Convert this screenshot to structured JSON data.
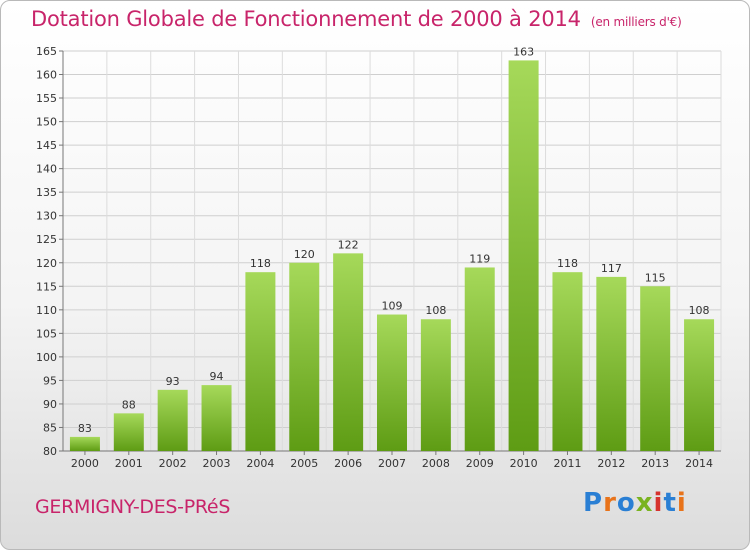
{
  "header": {
    "title": "Dotation Globale de Fonctionnement de 2000 à 2014",
    "unit": "(en milliers d'€)"
  },
  "footer": {
    "commune": "GERMIGNY-DES-PRéS",
    "logo": "Proxiti"
  },
  "colors": {
    "accent": "#c8246a",
    "bar_top": "#a6d95a",
    "bar_bottom": "#5e9c14"
  },
  "chart_data": {
    "type": "bar",
    "categories": [
      "2000",
      "2001",
      "2002",
      "2003",
      "2004",
      "2005",
      "2006",
      "2007",
      "2008",
      "2009",
      "2010",
      "2011",
      "2012",
      "2013",
      "2014"
    ],
    "values": [
      83,
      88,
      93,
      94,
      118,
      120,
      122,
      109,
      108,
      119,
      163,
      118,
      117,
      115,
      108
    ],
    "title": "Dotation Globale de Fonctionnement de 2000 à 2014",
    "ylim": [
      80,
      165
    ],
    "yticks": [
      80,
      85,
      90,
      95,
      100,
      105,
      110,
      115,
      120,
      125,
      130,
      135,
      140,
      145,
      150,
      155,
      160,
      165
    ],
    "grid": true,
    "legend": "none"
  }
}
